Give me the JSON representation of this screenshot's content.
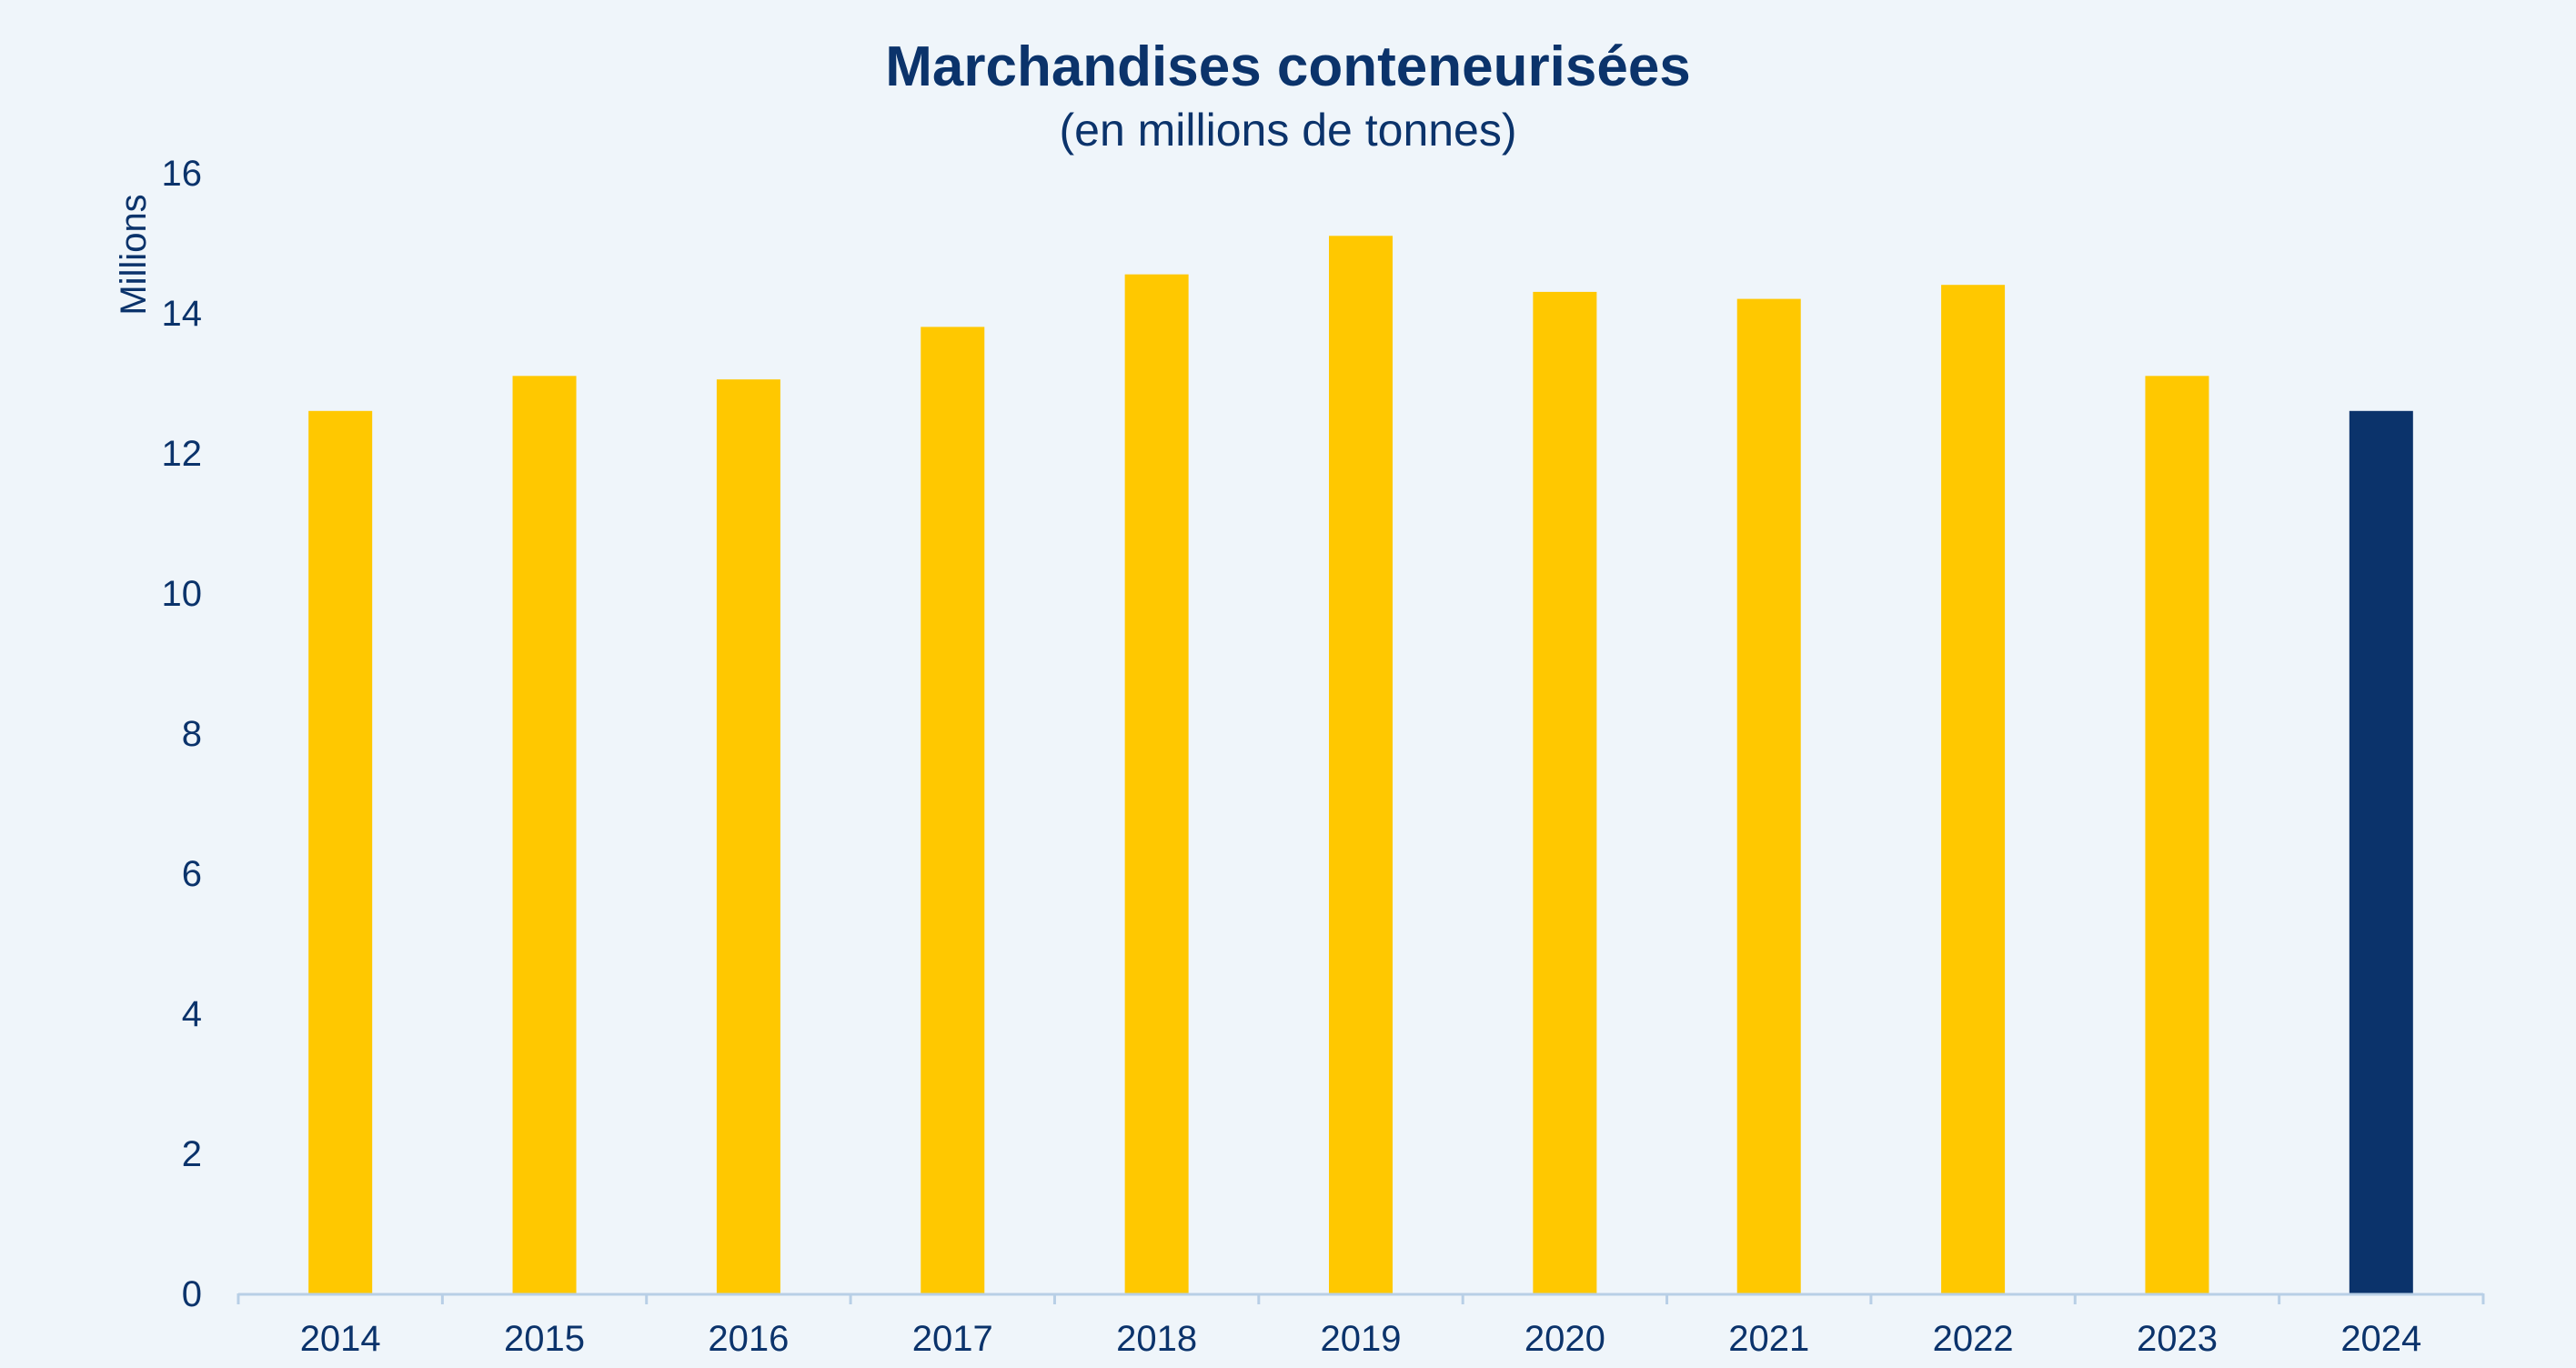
{
  "chart_data": {
    "type": "bar",
    "title": "Marchandises conteneurisées",
    "subtitle": "(en millions de tonnes)",
    "xlabel": "",
    "ylabel": "Millions",
    "categories": [
      "2014",
      "2015",
      "2016",
      "2017",
      "2018",
      "2019",
      "2020",
      "2021",
      "2022",
      "2023",
      "2024"
    ],
    "values": [
      12.6,
      13.1,
      13.05,
      13.8,
      14.55,
      15.1,
      14.3,
      14.2,
      14.4,
      13.1,
      12.6
    ],
    "bar_colors": [
      "#ffc800",
      "#ffc800",
      "#ffc800",
      "#ffc800",
      "#ffc800",
      "#ffc800",
      "#ffc800",
      "#ffc800",
      "#ffc800",
      "#ffc800",
      "#0b336b"
    ],
    "ylim": [
      0,
      16
    ],
    "yticks": [
      0,
      2,
      4,
      6,
      8,
      10,
      12,
      14,
      16
    ],
    "grid": false,
    "legend": "none"
  },
  "colors": {
    "background": "#eff5fa",
    "text": "#0b336b",
    "axis": "#b8cfe6"
  }
}
